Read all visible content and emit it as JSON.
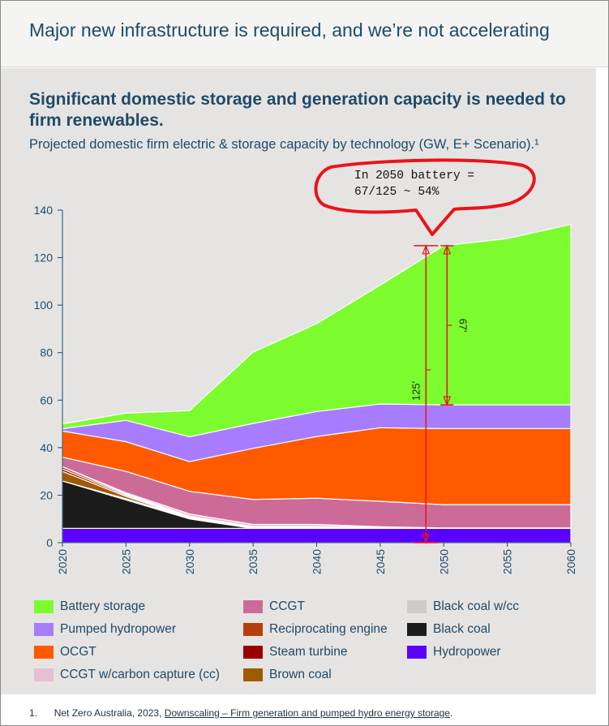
{
  "header": {
    "title": "Major new infrastructure is required, and we’re not accelerating"
  },
  "main": {
    "title": "Significant domestic storage and generation capacity is needed to firm renewables.",
    "subtitle": "Projected domestic firm electric & storage capacity by technology (GW, E+ Scenario).¹"
  },
  "annotation": {
    "line1": "In 2050 battery =",
    "line2": "67/125 ~ 54%",
    "total_label": "125'",
    "battery_label": "67'",
    "color": "#e8141b"
  },
  "footnote": {
    "number": "1.",
    "text": "Net Zero Australia, 2023, ",
    "link": "Downscaling – Firm generation and pumped hydro energy storage",
    "end": "."
  },
  "chart_data": {
    "type": "area",
    "stacked": true,
    "x": [
      2020,
      2025,
      2030,
      2035,
      2040,
      2045,
      2050,
      2055,
      2060
    ],
    "xticks": [
      "2020",
      "2025",
      "2030",
      "2035",
      "2040",
      "2045",
      "2050",
      "2055",
      "2060"
    ],
    "ylim": [
      0,
      140
    ],
    "yticks": [
      "0",
      "20",
      "40",
      "60",
      "80",
      "100",
      "120",
      "140"
    ],
    "ytick_values": [
      0,
      20,
      40,
      60,
      80,
      100,
      120,
      140
    ],
    "grid": false,
    "legend_placement": "bottom",
    "series": [
      {
        "name": "Hydropower",
        "color": "#5a00ff",
        "values": [
          6,
          6,
          6,
          6,
          6,
          6,
          6,
          6,
          6
        ]
      },
      {
        "name": "Black coal",
        "color": "#1c1c1c",
        "values": [
          20,
          12,
          4,
          0,
          0,
          0,
          0,
          0,
          0
        ]
      },
      {
        "name": "Black coal w/cc",
        "color": "#cccccc",
        "values": [
          0,
          0.5,
          0.5,
          0.5,
          0.5,
          0.5,
          0,
          0,
          0
        ]
      },
      {
        "name": "Brown coal",
        "color": "#a05a00",
        "values": [
          4,
          1,
          0,
          0,
          0,
          0,
          0,
          0,
          0
        ]
      },
      {
        "name": "Steam turbine",
        "color": "#9b0000",
        "values": [
          1,
          0.5,
          0.3,
          0,
          0,
          0,
          0,
          0,
          0
        ]
      },
      {
        "name": "Reciprocating engine",
        "color": "#b5400c",
        "values": [
          1,
          0.5,
          0.3,
          0.2,
          0.2,
          0.2,
          0.2,
          0.2,
          0.2
        ]
      },
      {
        "name": "CCGT w/carbon capture (cc)",
        "color": "#e6bfd2",
        "values": [
          0,
          0.5,
          1,
          1,
          1,
          0,
          0,
          0,
          0
        ]
      },
      {
        "name": "CCGT",
        "color": "#cc6b98",
        "values": [
          4,
          9,
          9.5,
          10.5,
          11,
          10.7,
          9.8,
          9.8,
          9.8
        ]
      },
      {
        "name": "OCGT",
        "color": "#ff5a00",
        "values": [
          11,
          12.5,
          12.5,
          21.5,
          26,
          31,
          32,
          32,
          32
        ]
      },
      {
        "name": "Pumped hydropower",
        "color": "#a77cff",
        "values": [
          1,
          9,
          10.5,
          10.5,
          10.5,
          10,
          10,
          10,
          10
        ]
      },
      {
        "name": "Battery storage",
        "color": "#7cfc2e",
        "values": [
          2,
          3,
          11,
          30,
          37,
          50,
          67,
          70,
          76
        ]
      }
    ],
    "legend": [
      {
        "name": "Battery storage",
        "color": "#7cfc2e"
      },
      {
        "name": "Pumped hydropower",
        "color": "#a77cff"
      },
      {
        "name": "OCGT",
        "color": "#ff5a00"
      },
      {
        "name": "CCGT w/carbon capture (cc)",
        "color": "#e6bfd2"
      },
      {
        "name": "CCGT",
        "color": "#cc6b98"
      },
      {
        "name": "Reciprocating engine",
        "color": "#b5400c"
      },
      {
        "name": "Steam turbine",
        "color": "#9b0000"
      },
      {
        "name": "Brown coal",
        "color": "#a05a00"
      },
      {
        "name": "Black coal w/cc",
        "color": "#cccccc"
      },
      {
        "name": "Black coal",
        "color": "#1c1c1c"
      },
      {
        "name": "Hydropower",
        "color": "#5a00ff"
      }
    ]
  }
}
